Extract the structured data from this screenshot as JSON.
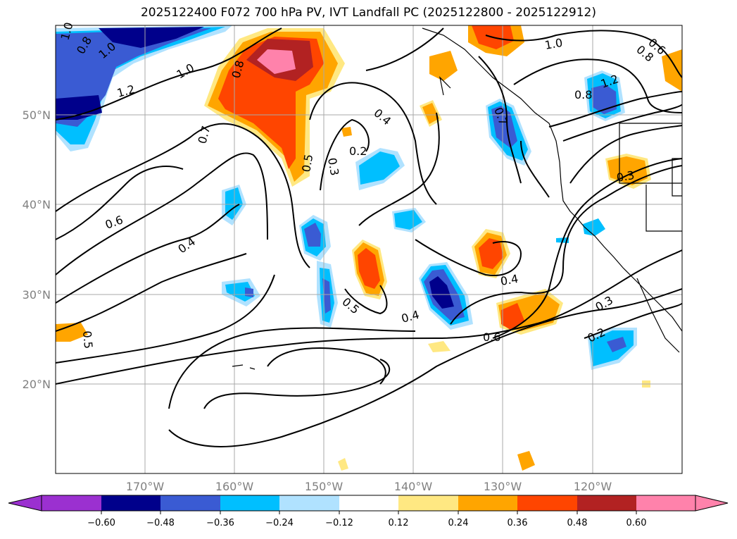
{
  "title": "2025122400 F072 700 hPa PV, IVT Landfall PC (2025122800 - 2025122912)",
  "map": {
    "lat_labels": [
      "50°N",
      "40°N",
      "30°N",
      "20°N"
    ],
    "lat_values": [
      50,
      40,
      30,
      20
    ],
    "lon_labels": [
      "170°W",
      "160°W",
      "150°W",
      "140°W",
      "130°W",
      "120°W"
    ],
    "lon_values": [
      -170,
      -160,
      -150,
      -140,
      -130,
      -120
    ],
    "extent": {
      "lon_min": -180,
      "lon_max": -110,
      "lat_min": 10,
      "lat_max": 60
    },
    "gridlines": true,
    "contour_labels": [
      "1.0",
      "0.8",
      "1.0",
      "1.2",
      "1.0",
      "0.8",
      "0.7",
      "0.5",
      "0.3",
      "0.4",
      "0.2",
      "0.6",
      "0.4",
      "0.5",
      "0.5",
      "0.4",
      "0.4",
      "0.6",
      "0.7",
      "1.0",
      "0.6",
      "0.8",
      "1.2",
      "0.8",
      "0.3",
      "0.3",
      "0.2"
    ]
  },
  "colorbar": {
    "ticks": [
      "−0.60",
      "−0.48",
      "−0.36",
      "−0.24",
      "−0.12",
      "0.12",
      "0.24",
      "0.36",
      "0.48",
      "0.60"
    ],
    "colors": [
      "#9b30d0",
      "#00008b",
      "#3a5bd3",
      "#00bfff",
      "#b0e2ff",
      "#ffffff",
      "#ffe882",
      "#ffa500",
      "#ff4500",
      "#b22222",
      "#ff82ab",
      "#ff82ab"
    ],
    "extend": "both"
  },
  "colors": {
    "lightblue": "#b0e2ff",
    "cyan": "#00bfff",
    "blue": "#3a5bd3",
    "navy": "#00008b",
    "yellow": "#ffe882",
    "orange": "#ffa500",
    "red": "#ff4500",
    "darkred": "#b22222",
    "pink": "#ff82ab"
  }
}
